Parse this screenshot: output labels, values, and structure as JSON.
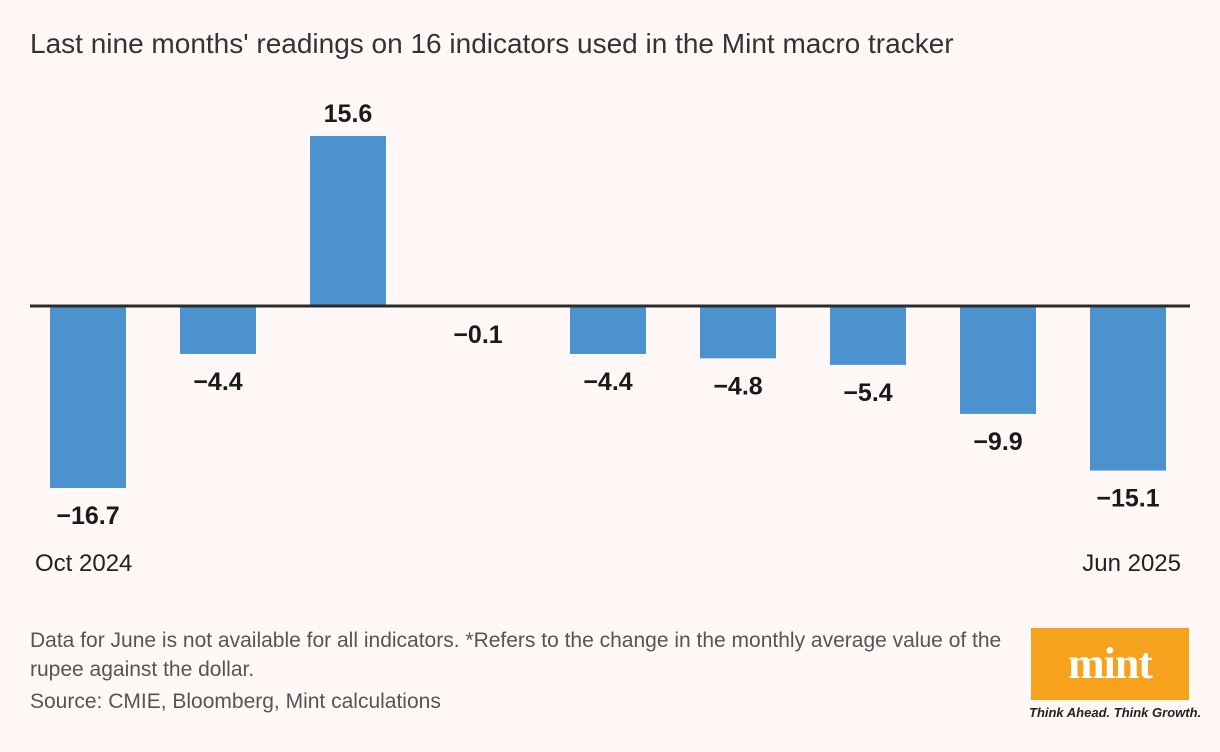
{
  "header": {
    "title": "Last nine months' readings on 16 indicators used in the Mint macro tracker"
  },
  "chart_data": {
    "type": "bar",
    "categories": [
      "Oct 2024",
      "",
      "",
      "",
      "",
      "",
      "",
      "",
      "Jun 2025"
    ],
    "values": [
      -16.7,
      -4.4,
      15.6,
      -0.1,
      -4.4,
      -4.8,
      -5.4,
      -9.9,
      -15.1
    ],
    "labels": [
      "−16.7",
      "−4.4",
      "15.6",
      "−0.1",
      "−4.4",
      "−4.8",
      "−5.4",
      "−9.9",
      "−15.1"
    ],
    "title": "Last nine months' readings on 16 indicators used in the Mint macro tracker",
    "xlabel": "",
    "ylabel": "",
    "bar_color": "#4b92cf",
    "grid": false
  },
  "footer": {
    "note": "Data for June is not available for all indicators. *Refers to the change in the monthly average value of the rupee against the dollar.",
    "source": "Source: CMIE, Bloomberg, Mint calculations"
  },
  "brand": {
    "logo_text": "mint",
    "tagline": "Think Ahead. Think Growth.",
    "color": "#f7a21c"
  }
}
